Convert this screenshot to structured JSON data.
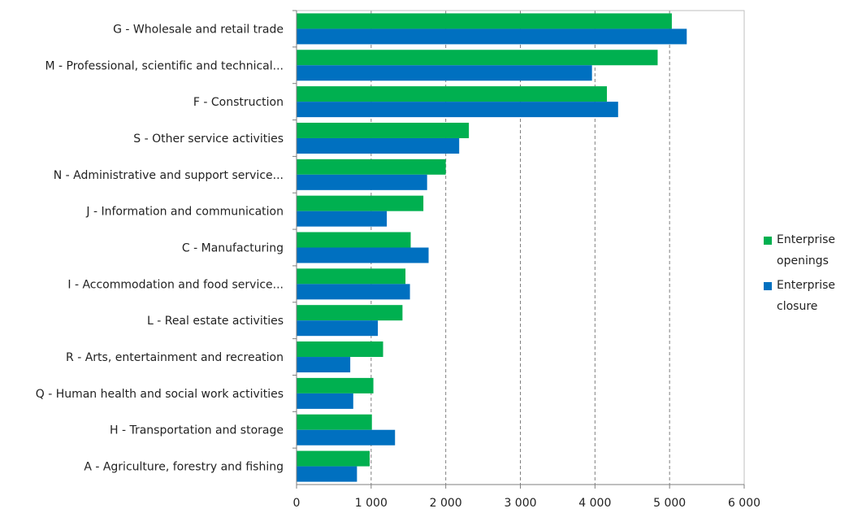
{
  "chart_data": {
    "type": "bar",
    "orientation": "horizontal",
    "categories": [
      "G - Wholesale and retail trade",
      "M - Professional, scientific and technical...",
      "F - Construction",
      "S - Other service activities",
      "N - Administrative and support service...",
      "J - Information and communication",
      "C - Manufacturing",
      "I - Accommodation and food service...",
      "L - Real estate activities",
      "R - Arts, entertainment and recreation",
      "Q - Human health and social work activities",
      "H - Transportation and storage",
      "A - Agriculture, forestry and fishing"
    ],
    "series": [
      {
        "name": "Enterprise openings",
        "color": "#00b050",
        "values": [
          5030,
          4840,
          4160,
          2310,
          2000,
          1700,
          1530,
          1460,
          1420,
          1160,
          1030,
          1010,
          980
        ]
      },
      {
        "name": "Enterprise closure",
        "color": "#0070c0",
        "values": [
          5230,
          3960,
          4310,
          2180,
          1750,
          1210,
          1770,
          1520,
          1090,
          720,
          760,
          1320,
          810
        ]
      }
    ],
    "xlim": [
      0,
      6000
    ],
    "xticks": [
      0,
      1000,
      2000,
      3000,
      4000,
      5000,
      6000
    ],
    "xtick_labels": [
      "0",
      "1 000",
      "2 000",
      "3 000",
      "4 000",
      "5 000",
      "6 000"
    ],
    "grid": "vertical dashed",
    "legend_position": "right"
  },
  "legend": {
    "openings": "Enterprise openings",
    "closure": "Enterprise closure"
  }
}
